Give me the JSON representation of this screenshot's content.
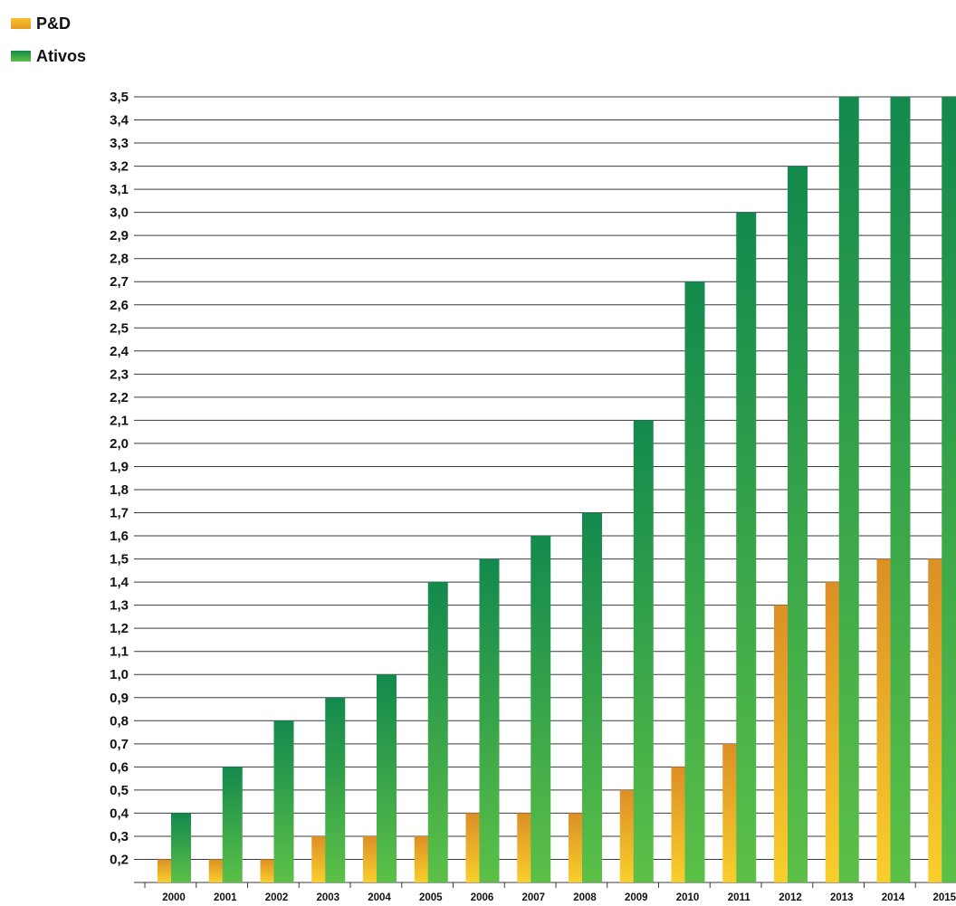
{
  "legend": [
    {
      "label": "P&D",
      "color": "#f0a820"
    },
    {
      "label": "Ativos",
      "color": "#1f9a4a"
    }
  ],
  "chart_data": {
    "type": "bar",
    "categories": [
      "2000",
      "2001",
      "2002",
      "2003",
      "2004",
      "2005",
      "2006",
      "2007",
      "2008",
      "2009",
      "2010",
      "2011",
      "2012",
      "2013",
      "2014",
      "2015"
    ],
    "series": [
      {
        "name": "P&D",
        "values": [
          0.2,
          0.2,
          0.2,
          0.3,
          0.3,
          0.3,
          0.4,
          0.4,
          0.4,
          0.5,
          0.6,
          0.7,
          1.3,
          1.4,
          1.5,
          1.5
        ],
        "color": "#f0a820"
      },
      {
        "name": "Ativos",
        "values": [
          0.4,
          0.6,
          0.8,
          0.9,
          1.0,
          1.4,
          1.5,
          1.6,
          1.7,
          2.1,
          2.7,
          3.0,
          3.2,
          3.5,
          3.5,
          3.5
        ],
        "color": "#1f9a4a"
      }
    ],
    "yticks": [
      "0,2",
      "0,3",
      "0,4",
      "0,5",
      "0,6",
      "0,7",
      "0,8",
      "0,9",
      "1,0",
      "1,1",
      "1,2",
      "1,3",
      "1,4",
      "1,5",
      "1,6",
      "1,7",
      "1,8",
      "1,9",
      "2,0",
      "2,1",
      "2,2",
      "2,3",
      "2,4",
      "2,5",
      "2,6",
      "2,7",
      "2,8",
      "2,9",
      "3,0",
      "3,1",
      "3,2",
      "3,3",
      "3,4",
      "3,5"
    ],
    "ylim": [
      0.1,
      3.5
    ],
    "grid": true,
    "legend_position": "top-left"
  }
}
